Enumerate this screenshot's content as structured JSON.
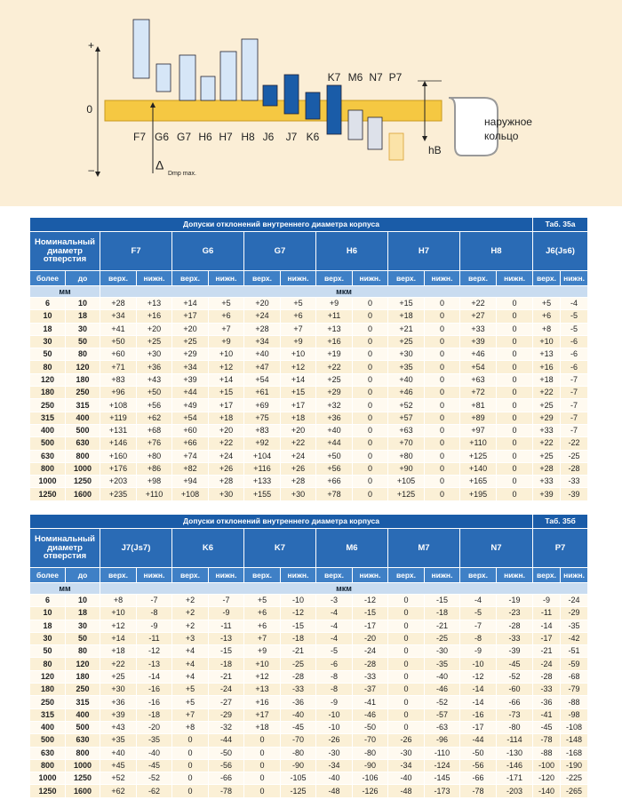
{
  "diagram": {
    "plus": "+",
    "zero": "0",
    "minus": "–",
    "delta": "Δ",
    "delta_sub": "Dmp max.",
    "hb": "hB",
    "ring": [
      "наружное",
      "кольцо"
    ],
    "labels_low": [
      "F7",
      "G6",
      "G7",
      "H6",
      "H7",
      "H8",
      "J6",
      "J7",
      "K6"
    ],
    "labels_high": [
      "K7",
      "M6",
      "N7",
      "P7"
    ]
  },
  "tables": [
    {
      "title": "Допуски отклонений внутреннего диаметра корпуса",
      "tab": "Таб. 35а",
      "nominal": "Номинальный диаметр отверстия",
      "from": "более",
      "to": "до",
      "upper": "верх.",
      "lower": "нижн.",
      "unit_mm": "мм",
      "unit_um": "мкм",
      "columns": [
        "F7",
        "G6",
        "G7",
        "H6",
        "H7",
        "H8",
        "J6(Js6)"
      ],
      "rows": [
        [
          "6",
          "10",
          "+28",
          "+13",
          "+14",
          "+5",
          "+20",
          "+5",
          "+9",
          "0",
          "+15",
          "0",
          "+22",
          "0",
          "+5",
          "-4"
        ],
        [
          "10",
          "18",
          "+34",
          "+16",
          "+17",
          "+6",
          "+24",
          "+6",
          "+11",
          "0",
          "+18",
          "0",
          "+27",
          "0",
          "+6",
          "-5"
        ],
        [
          "18",
          "30",
          "+41",
          "+20",
          "+20",
          "+7",
          "+28",
          "+7",
          "+13",
          "0",
          "+21",
          "0",
          "+33",
          "0",
          "+8",
          "-5"
        ],
        [
          "30",
          "50",
          "+50",
          "+25",
          "+25",
          "+9",
          "+34",
          "+9",
          "+16",
          "0",
          "+25",
          "0",
          "+39",
          "0",
          "+10",
          "-6"
        ],
        [
          "50",
          "80",
          "+60",
          "+30",
          "+29",
          "+10",
          "+40",
          "+10",
          "+19",
          "0",
          "+30",
          "0",
          "+46",
          "0",
          "+13",
          "-6"
        ],
        [
          "80",
          "120",
          "+71",
          "+36",
          "+34",
          "+12",
          "+47",
          "+12",
          "+22",
          "0",
          "+35",
          "0",
          "+54",
          "0",
          "+16",
          "-6"
        ],
        [
          "120",
          "180",
          "+83",
          "+43",
          "+39",
          "+14",
          "+54",
          "+14",
          "+25",
          "0",
          "+40",
          "0",
          "+63",
          "0",
          "+18",
          "-7"
        ],
        [
          "180",
          "250",
          "+96",
          "+50",
          "+44",
          "+15",
          "+61",
          "+15",
          "+29",
          "0",
          "+46",
          "0",
          "+72",
          "0",
          "+22",
          "-7"
        ],
        [
          "250",
          "315",
          "+108",
          "+56",
          "+49",
          "+17",
          "+69",
          "+17",
          "+32",
          "0",
          "+52",
          "0",
          "+81",
          "0",
          "+25",
          "-7"
        ],
        [
          "315",
          "400",
          "+119",
          "+62",
          "+54",
          "+18",
          "+75",
          "+18",
          "+36",
          "0",
          "+57",
          "0",
          "+89",
          "0",
          "+29",
          "-7"
        ],
        [
          "400",
          "500",
          "+131",
          "+68",
          "+60",
          "+20",
          "+83",
          "+20",
          "+40",
          "0",
          "+63",
          "0",
          "+97",
          "0",
          "+33",
          "-7"
        ],
        [
          "500",
          "630",
          "+146",
          "+76",
          "+66",
          "+22",
          "+92",
          "+22",
          "+44",
          "0",
          "+70",
          "0",
          "+110",
          "0",
          "+22",
          "-22"
        ],
        [
          "630",
          "800",
          "+160",
          "+80",
          "+74",
          "+24",
          "+104",
          "+24",
          "+50",
          "0",
          "+80",
          "0",
          "+125",
          "0",
          "+25",
          "-25"
        ],
        [
          "800",
          "1000",
          "+176",
          "+86",
          "+82",
          "+26",
          "+116",
          "+26",
          "+56",
          "0",
          "+90",
          "0",
          "+140",
          "0",
          "+28",
          "-28"
        ],
        [
          "1000",
          "1250",
          "+203",
          "+98",
          "+94",
          "+28",
          "+133",
          "+28",
          "+66",
          "0",
          "+105",
          "0",
          "+165",
          "0",
          "+33",
          "-33"
        ],
        [
          "1250",
          "1600",
          "+235",
          "+110",
          "+108",
          "+30",
          "+155",
          "+30",
          "+78",
          "0",
          "+125",
          "0",
          "+195",
          "0",
          "+39",
          "-39"
        ]
      ]
    },
    {
      "title": "Допуски отклонений внутреннего диаметра корпуса",
      "tab": "Таб. 35б",
      "nominal": "Номинальный диаметр отверстия",
      "from": "более",
      "to": "до",
      "upper": "верх.",
      "lower": "нижн.",
      "unit_mm": "мм",
      "unit_um": "мкм",
      "columns": [
        "J7(Js7)",
        "K6",
        "K7",
        "M6",
        "M7",
        "N7",
        "P7"
      ],
      "rows": [
        [
          "6",
          "10",
          "+8",
          "-7",
          "+2",
          "-7",
          "+5",
          "-10",
          "-3",
          "-12",
          "0",
          "-15",
          "-4",
          "-19",
          "-9",
          "-24"
        ],
        [
          "10",
          "18",
          "+10",
          "-8",
          "+2",
          "-9",
          "+6",
          "-12",
          "-4",
          "-15",
          "0",
          "-18",
          "-5",
          "-23",
          "-11",
          "-29"
        ],
        [
          "18",
          "30",
          "+12",
          "-9",
          "+2",
          "-11",
          "+6",
          "-15",
          "-4",
          "-17",
          "0",
          "-21",
          "-7",
          "-28",
          "-14",
          "-35"
        ],
        [
          "30",
          "50",
          "+14",
          "-11",
          "+3",
          "-13",
          "+7",
          "-18",
          "-4",
          "-20",
          "0",
          "-25",
          "-8",
          "-33",
          "-17",
          "-42"
        ],
        [
          "50",
          "80",
          "+18",
          "-12",
          "+4",
          "-15",
          "+9",
          "-21",
          "-5",
          "-24",
          "0",
          "-30",
          "-9",
          "-39",
          "-21",
          "-51"
        ],
        [
          "80",
          "120",
          "+22",
          "-13",
          "+4",
          "-18",
          "+10",
          "-25",
          "-6",
          "-28",
          "0",
          "-35",
          "-10",
          "-45",
          "-24",
          "-59"
        ],
        [
          "120",
          "180",
          "+25",
          "-14",
          "+4",
          "-21",
          "+12",
          "-28",
          "-8",
          "-33",
          "0",
          "-40",
          "-12",
          "-52",
          "-28",
          "-68"
        ],
        [
          "180",
          "250",
          "+30",
          "-16",
          "+5",
          "-24",
          "+13",
          "-33",
          "-8",
          "-37",
          "0",
          "-46",
          "-14",
          "-60",
          "-33",
          "-79"
        ],
        [
          "250",
          "315",
          "+36",
          "-16",
          "+5",
          "-27",
          "+16",
          "-36",
          "-9",
          "-41",
          "0",
          "-52",
          "-14",
          "-66",
          "-36",
          "-88"
        ],
        [
          "315",
          "400",
          "+39",
          "-18",
          "+7",
          "-29",
          "+17",
          "-40",
          "-10",
          "-46",
          "0",
          "-57",
          "-16",
          "-73",
          "-41",
          "-98"
        ],
        [
          "400",
          "500",
          "+43",
          "-20",
          "+8",
          "-32",
          "+18",
          "-45",
          "-10",
          "-50",
          "0",
          "-63",
          "-17",
          "-80",
          "-45",
          "-108"
        ],
        [
          "500",
          "630",
          "+35",
          "-35",
          "0",
          "-44",
          "0",
          "-70",
          "-26",
          "-70",
          "-26",
          "-96",
          "-44",
          "-114",
          "-78",
          "-148"
        ],
        [
          "630",
          "800",
          "+40",
          "-40",
          "0",
          "-50",
          "0",
          "-80",
          "-30",
          "-80",
          "-30",
          "-110",
          "-50",
          "-130",
          "-88",
          "-168"
        ],
        [
          "800",
          "1000",
          "+45",
          "-45",
          "0",
          "-56",
          "0",
          "-90",
          "-34",
          "-90",
          "-34",
          "-124",
          "-56",
          "-146",
          "-100",
          "-190"
        ],
        [
          "1000",
          "1250",
          "+52",
          "-52",
          "0",
          "-66",
          "0",
          "-105",
          "-40",
          "-106",
          "-40",
          "-145",
          "-66",
          "-171",
          "-120",
          "-225"
        ],
        [
          "1250",
          "1600",
          "+62",
          "-62",
          "0",
          "-78",
          "0",
          "-125",
          "-48",
          "-126",
          "-48",
          "-173",
          "-78",
          "-203",
          "-140",
          "-265"
        ]
      ]
    }
  ]
}
